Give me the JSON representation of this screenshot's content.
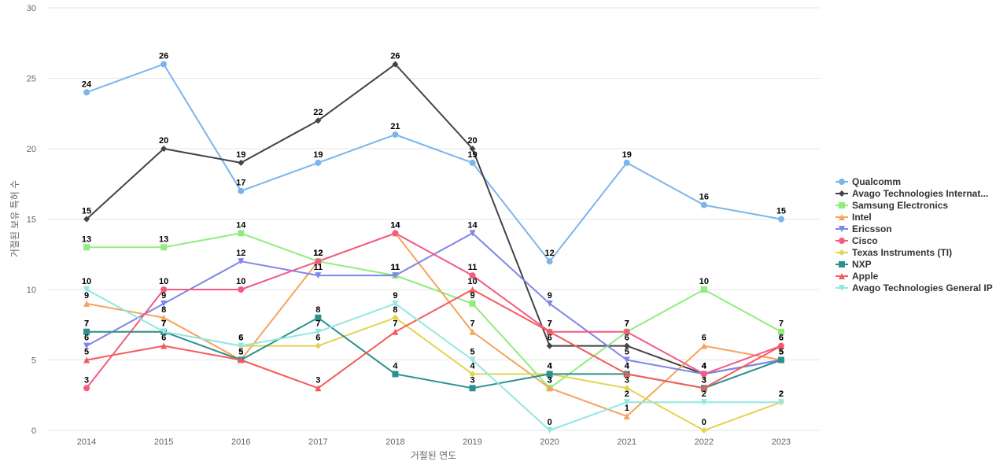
{
  "chart_data": {
    "type": "line",
    "title": "",
    "xlabel": "거절된 연도",
    "ylabel": "거절된 보유 특허 수",
    "categories": [
      "2014",
      "2015",
      "2016",
      "2017",
      "2018",
      "2019",
      "2020",
      "2021",
      "2022",
      "2023"
    ],
    "ylim": [
      0,
      30
    ],
    "yticks": [
      0,
      5,
      10,
      15,
      20,
      25,
      30
    ],
    "grid": true,
    "legend_position": "right",
    "series": [
      {
        "name": "Qualcomm",
        "color": "#7cb5ec",
        "marker": "circle",
        "values": [
          24,
          26,
          17,
          19,
          21,
          19,
          12,
          19,
          16,
          15
        ]
      },
      {
        "name": "Avago Technologies Internat...",
        "color": "#434348",
        "marker": "diamond",
        "values": [
          15,
          20,
          19,
          22,
          26,
          20,
          6,
          6,
          4,
          5
        ]
      },
      {
        "name": "Samsung Electronics",
        "color": "#90ed7d",
        "marker": "square",
        "values": [
          13,
          13,
          14,
          12,
          11,
          9,
          3,
          7,
          10,
          7
        ]
      },
      {
        "name": "Intel",
        "color": "#f7a35c",
        "marker": "triangle",
        "values": [
          9,
          8,
          5,
          12,
          14,
          7,
          3,
          1,
          6,
          5
        ]
      },
      {
        "name": "Ericsson",
        "color": "#8085e9",
        "marker": "triangle-down",
        "values": [
          6,
          9,
          12,
          11,
          11,
          14,
          9,
          5,
          4,
          5
        ]
      },
      {
        "name": "Cisco",
        "color": "#f15c80",
        "marker": "circle",
        "values": [
          3,
          10,
          10,
          12,
          14,
          11,
          7,
          7,
          4,
          6
        ]
      },
      {
        "name": "Texas Instruments (TI)",
        "color": "#e4d354",
        "marker": "diamond",
        "values": [
          7,
          7,
          6,
          6,
          8,
          4,
          4,
          3,
          0,
          2
        ]
      },
      {
        "name": "NXP",
        "color": "#2b908f",
        "marker": "square",
        "values": [
          7,
          7,
          5,
          8,
          4,
          3,
          4,
          4,
          3,
          5
        ]
      },
      {
        "name": "Apple",
        "color": "#f45b5b",
        "marker": "triangle",
        "values": [
          5,
          6,
          5,
          3,
          7,
          10,
          7,
          4,
          3,
          6
        ]
      },
      {
        "name": "Avago Technologies General IP",
        "color": "#91e8e1",
        "marker": "triangle-down",
        "values": [
          10,
          7,
          6,
          7,
          9,
          5,
          0,
          2,
          2,
          2
        ]
      }
    ]
  }
}
